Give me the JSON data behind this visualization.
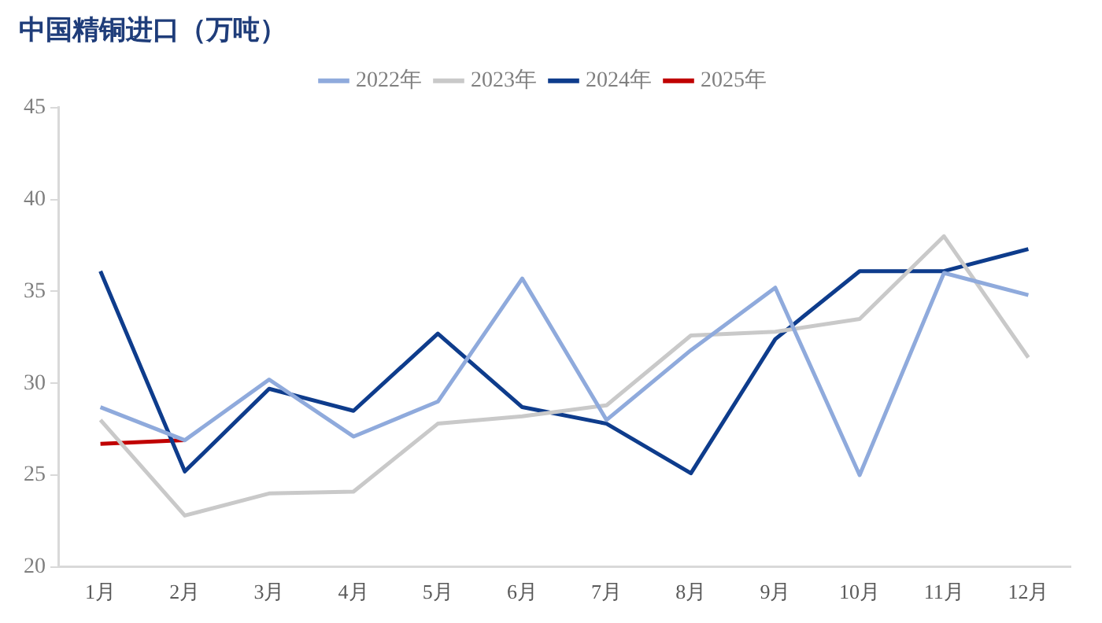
{
  "chart_data": {
    "type": "line",
    "title": "中国精铜进口（万吨）",
    "categories": [
      "1月",
      "2月",
      "3月",
      "4月",
      "5月",
      "6月",
      "7月",
      "8月",
      "9月",
      "10月",
      "11月",
      "12月"
    ],
    "series": [
      {
        "name": "2022年",
        "color": "#8faadc",
        "values": [
          28.7,
          26.9,
          30.2,
          27.1,
          29.0,
          35.7,
          28.0,
          31.8,
          35.2,
          25.0,
          36.0,
          34.8
        ]
      },
      {
        "name": "2023年",
        "color": "#c9c9c9",
        "values": [
          28.0,
          22.8,
          24.0,
          24.1,
          27.8,
          28.2,
          28.8,
          32.6,
          32.8,
          33.5,
          38.0,
          31.4
        ]
      },
      {
        "name": "2024年",
        "color": "#0e3c8c",
        "values": [
          36.1,
          25.2,
          29.7,
          28.5,
          32.7,
          28.7,
          27.8,
          25.1,
          32.4,
          36.1,
          36.1,
          37.3
        ]
      },
      {
        "name": "2025年",
        "color": "#c00000",
        "values": [
          26.7,
          26.9,
          null,
          null,
          null,
          null,
          null,
          null,
          null,
          null,
          null,
          null
        ]
      }
    ],
    "ylim": [
      20,
      45
    ],
    "yticks": [
      20,
      25,
      30,
      35,
      40,
      45
    ],
    "grid": false,
    "legend": "top",
    "marker": "none",
    "line_style": "solid"
  }
}
